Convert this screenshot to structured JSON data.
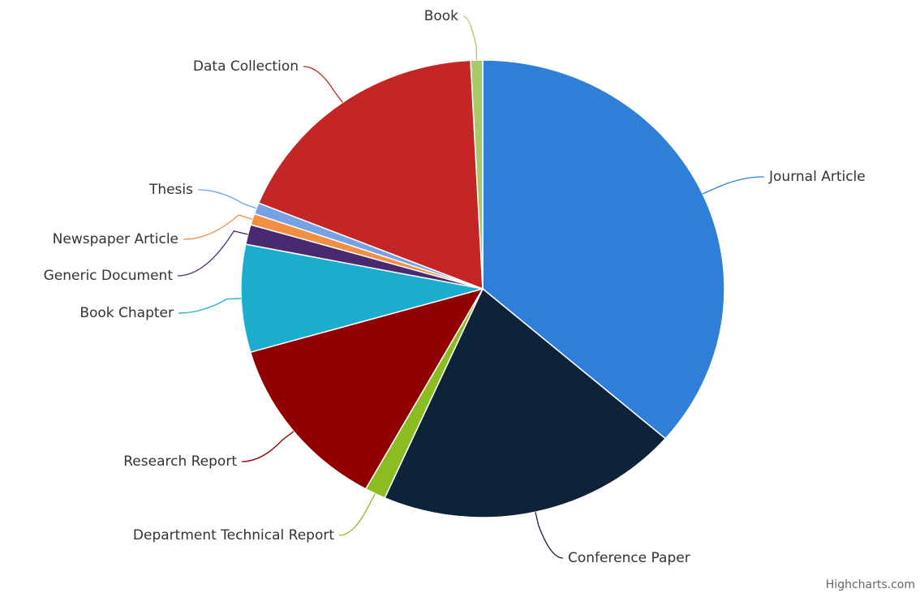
{
  "chart_data": {
    "type": "pie",
    "categories": [
      "Journal Article",
      "Conference Paper",
      "Department Technical Report",
      "Research Report",
      "Book Chapter",
      "Generic Document",
      "Newspaper Article",
      "Thesis",
      "Data Collection",
      "Book"
    ],
    "values": [
      36.4,
      20.3,
      1.4,
      12.5,
      7.6,
      1.4,
      0.8,
      0.8,
      18.1,
      0.8
    ],
    "colors": [
      "#2f7ed8",
      "#0d233a",
      "#8bbc21",
      "#910000",
      "#1aadce",
      "#492970",
      "#f28f43",
      "#77a1e5",
      "#c42525",
      "#a6c96a"
    ],
    "credits": "Highcharts.com"
  }
}
